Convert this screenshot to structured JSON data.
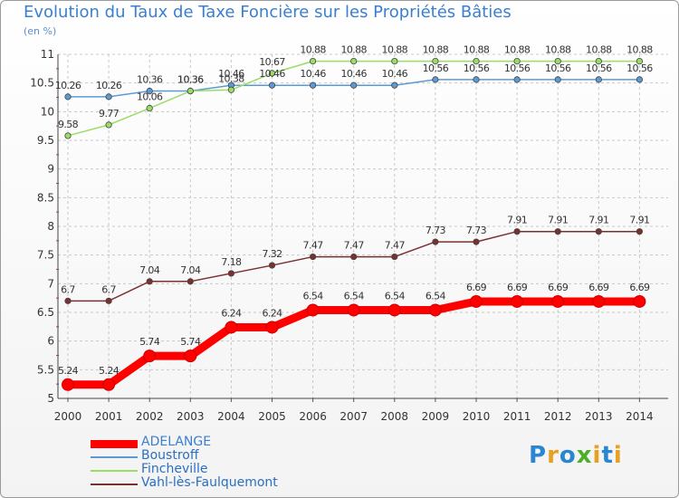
{
  "title": "Evolution du Taux de Taxe Foncière sur les Propriétés Bâties",
  "unit_label": "(en %)",
  "logo": {
    "letters": [
      "P",
      "r",
      "o",
      "x",
      "i",
      "t",
      "i"
    ],
    "colors": [
      "#2a86d1",
      "#e8a020",
      "#2a86d1",
      "#4caf2a",
      "#e8a020",
      "#2a86d1",
      "#e8a020"
    ]
  },
  "chart_data": {
    "type": "line",
    "title": "Evolution du Taux de Taxe Foncière sur les Propriétés Bâties",
    "ylabel": "(en %)",
    "xlabel": "",
    "ylim": [
      5,
      11
    ],
    "y_ticks": [
      "5",
      "5.5",
      "6",
      "6.5",
      "7",
      "7.5",
      "8",
      "8.5",
      "9",
      "9.5",
      "10",
      "10.5",
      "11"
    ],
    "y_tick_values": [
      5,
      5.5,
      6,
      6.5,
      7,
      7.5,
      8,
      8.5,
      9,
      9.5,
      10,
      10.5,
      11
    ],
    "x": [
      "2000",
      "2001",
      "2002",
      "2003",
      "2004",
      "2005",
      "2006",
      "2007",
      "2008",
      "2009",
      "2010",
      "2011",
      "2012",
      "2013",
      "2014"
    ],
    "legend_position": "bottom-left",
    "series": [
      {
        "name": "ADELANGE",
        "color": "#ff0000",
        "values": [
          5.24,
          5.24,
          5.74,
          5.74,
          6.24,
          6.24,
          6.54,
          6.54,
          6.54,
          6.54,
          6.69,
          6.69,
          6.69,
          6.69,
          6.69
        ],
        "labels": [
          "5.24",
          "5.24",
          "5.74",
          "5.74",
          "6.24",
          "6.24",
          "6.54",
          "6.54",
          "6.54",
          "6.54",
          "6.69",
          "6.69",
          "6.69",
          "6.69",
          "6.69"
        ]
      },
      {
        "name": "Boustroff",
        "color": "#5b9bd5",
        "values": [
          10.26,
          10.26,
          10.36,
          10.36,
          10.46,
          10.46,
          10.46,
          10.46,
          10.46,
          10.56,
          10.56,
          10.56,
          10.56,
          10.56,
          10.56
        ],
        "labels": [
          "10.26",
          "10.26",
          "10.36",
          "10.36",
          "10.46",
          "10.46",
          "10.46",
          "10.46",
          "10.46",
          "10.56",
          "10.56",
          "10.56",
          "10.56",
          "10.56",
          "10.56"
        ]
      },
      {
        "name": "Fincheville",
        "color": "#99dd66",
        "values": [
          9.58,
          9.77,
          10.06,
          10.36,
          10.38,
          10.67,
          10.88,
          10.88,
          10.88,
          10.88,
          10.88,
          10.88,
          10.88,
          10.88,
          10.88
        ],
        "labels": [
          "9.58",
          "9.77",
          "10.06",
          "10.36",
          "10.38",
          "10.67",
          "10.88",
          "10.88",
          "10.88",
          "10.88",
          "10.88",
          "10.88",
          "10.88",
          "10.88",
          "10.88"
        ]
      },
      {
        "name": "Vahl-lès-Faulquemont",
        "color": "#7b3030",
        "values": [
          6.7,
          6.7,
          7.04,
          7.04,
          7.18,
          7.32,
          7.47,
          7.47,
          7.47,
          7.73,
          7.73,
          7.91,
          7.91,
          7.91,
          7.91
        ],
        "labels": [
          "6.7",
          "6.7",
          "7.04",
          "7.04",
          "7.18",
          "7.32",
          "7.47",
          "7.47",
          "7.47",
          "7.73",
          "7.73",
          "7.91",
          "7.91",
          "7.91",
          "7.91"
        ]
      }
    ]
  }
}
